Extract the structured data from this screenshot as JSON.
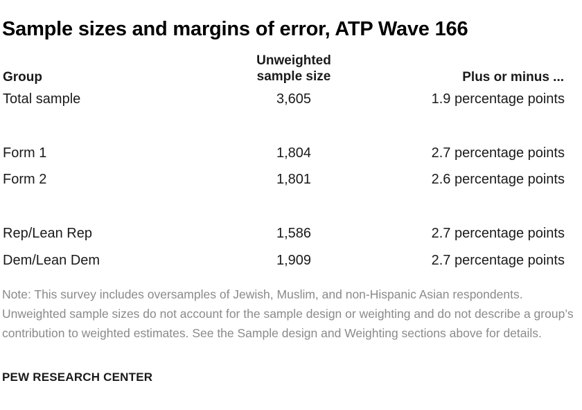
{
  "title": "Sample sizes and margins of error, ATP Wave 166",
  "columns": {
    "group": "Group",
    "sample_size": "Unweighted sample size",
    "margin": "Plus or minus ..."
  },
  "rows": [
    {
      "group": "Total sample",
      "sample_size": "3,605",
      "margin": "1.9 percentage points"
    },
    {
      "group": "Form 1",
      "sample_size": "1,804",
      "margin": "2.7 percentage points"
    },
    {
      "group": "Form 2",
      "sample_size": "1,801",
      "margin": "2.6 percentage points"
    },
    {
      "group": "Rep/Lean Rep",
      "sample_size": "1,586",
      "margin": "2.7 percentage points"
    },
    {
      "group": "Dem/Lean Dem",
      "sample_size": "1,909",
      "margin": "2.7 percentage points"
    }
  ],
  "note": "Note: This survey includes oversamples of Jewish, Muslim, and non-Hispanic Asian respondents. Unweighted sample sizes do not account for the sample design or weighting and do not describe a group’s contribution to weighted estimates. See the Sample design and Weighting sections above for details.",
  "source": "PEW RESEARCH CENTER"
}
